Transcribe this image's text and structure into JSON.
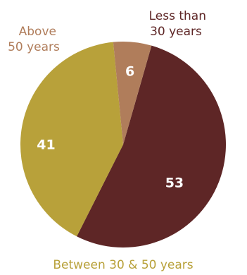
{
  "chart_data": {
    "type": "pie",
    "slices": [
      {
        "label_lines": [
          "Less than",
          "30 years"
        ],
        "value": 53,
        "value_text": "53",
        "color": "#5e2626",
        "label_color": "#5e2626"
      },
      {
        "label_lines": [
          "Between 30 & 50 years"
        ],
        "value": 41,
        "value_text": "41",
        "color": "#b8a13a",
        "label_color": "#b8a13a"
      },
      {
        "label_lines": [
          "Above",
          "50 years"
        ],
        "value": 6,
        "value_text": "6",
        "color": "#b07d5b",
        "label_color": "#b07d5b"
      }
    ]
  }
}
